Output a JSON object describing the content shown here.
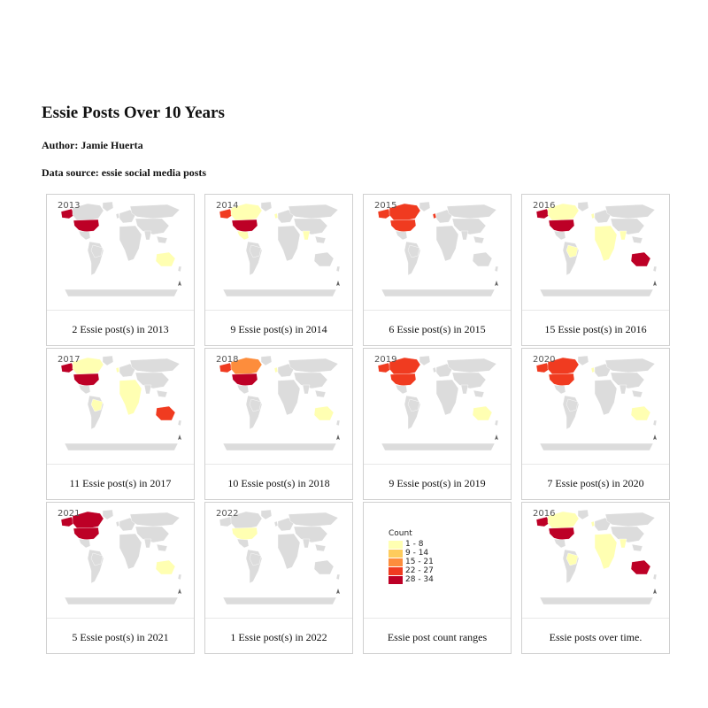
{
  "title": "Essie Posts Over 10 Years",
  "author": "Author: Jamie Huerta",
  "source": "Data source: essie social media posts",
  "colors": {
    "land": "#dcdcdc",
    "c1": "#ffffb2",
    "c2": "#fecc5c",
    "c3": "#fd8d3c",
    "c4": "#f03b20",
    "c5": "#bd0026"
  },
  "panels": [
    {
      "year": "2013",
      "caption": "2 Essie post(s) in 2013",
      "fills": {
        "usa": "c5",
        "canada": "land",
        "alaska": "c5",
        "mexico": "land",
        "brazil": "land",
        "uk": "land",
        "europe": "land",
        "africa": "land",
        "india": "land",
        "australia": "c1"
      }
    },
    {
      "year": "2014",
      "caption": "9 Essie post(s) in 2014",
      "fills": {
        "usa": "c5",
        "canada": "c1",
        "alaska": "c4",
        "mexico": "c1",
        "brazil": "land",
        "uk": "c1",
        "europe": "land",
        "africa": "land",
        "india": "c1",
        "australia": "land"
      }
    },
    {
      "year": "2015",
      "caption": "6 Essie post(s) in 2015",
      "fills": {
        "usa": "c4",
        "canada": "c4",
        "alaska": "c4",
        "mexico": "land",
        "brazil": "land",
        "uk": "c4",
        "europe": "land",
        "africa": "land",
        "india": "land",
        "australia": "land"
      }
    },
    {
      "year": "2016",
      "caption": "15 Essie post(s) in 2016",
      "fills": {
        "usa": "c5",
        "canada": "c1",
        "alaska": "c5",
        "mexico": "land",
        "brazil": "c1",
        "uk": "c1",
        "europe": "land",
        "africa": "c1",
        "india": "c1",
        "australia": "c5"
      }
    },
    {
      "year": "2017",
      "caption": "11 Essie post(s) in 2017",
      "fills": {
        "usa": "c5",
        "canada": "c1",
        "alaska": "c5",
        "mexico": "land",
        "brazil": "c1",
        "uk": "c1",
        "europe": "land",
        "africa": "c1",
        "india": "land",
        "australia": "c4"
      }
    },
    {
      "year": "2018",
      "caption": "10 Essie post(s) in 2018",
      "fills": {
        "usa": "c5",
        "canada": "c3",
        "alaska": "c4",
        "mexico": "land",
        "brazil": "land",
        "uk": "c1",
        "europe": "land",
        "africa": "land",
        "india": "land",
        "australia": "c1"
      }
    },
    {
      "year": "2019",
      "caption": "9 Essie post(s) in 2019",
      "fills": {
        "usa": "c4",
        "canada": "c4",
        "alaska": "c4",
        "mexico": "land",
        "brazil": "land",
        "uk": "land",
        "europe": "land",
        "africa": "land",
        "india": "land",
        "australia": "c1"
      }
    },
    {
      "year": "2020",
      "caption": "7 Essie post(s) in 2020",
      "fills": {
        "usa": "c4",
        "canada": "c4",
        "alaska": "c4",
        "mexico": "land",
        "brazil": "land",
        "uk": "c1",
        "europe": "land",
        "africa": "land",
        "india": "land",
        "australia": "c1"
      }
    },
    {
      "year": "2021",
      "caption": "5 Essie post(s) in 2021",
      "fills": {
        "usa": "c5",
        "canada": "c5",
        "alaska": "c5",
        "mexico": "land",
        "brazil": "land",
        "uk": "land",
        "europe": "land",
        "africa": "land",
        "india": "land",
        "australia": "c1"
      }
    },
    {
      "year": "2022",
      "caption": "1 Essie post(s) in 2022",
      "fills": {
        "usa": "c1",
        "canada": "land",
        "alaska": "land",
        "mexico": "land",
        "brazil": "land",
        "uk": "land",
        "europe": "land",
        "africa": "land",
        "india": "land",
        "australia": "land"
      }
    },
    {
      "legend": true,
      "caption": "Essie post count ranges"
    },
    {
      "year": "2016",
      "caption": "Essie posts over time.",
      "fills": {
        "usa": "c5",
        "canada": "c1",
        "alaska": "c5",
        "mexico": "land",
        "brazil": "c1",
        "uk": "c1",
        "europe": "land",
        "africa": "c1",
        "india": "c1",
        "australia": "c5"
      }
    }
  ],
  "legend": {
    "title": "Count",
    "items": [
      {
        "label": "1 - 8",
        "color": "#ffffb2"
      },
      {
        "label": "9 - 14",
        "color": "#fecc5c"
      },
      {
        "label": "15 - 21",
        "color": "#fd8d3c"
      },
      {
        "label": "22 - 27",
        "color": "#f03b20"
      },
      {
        "label": "28 - 34",
        "color": "#bd0026"
      }
    ]
  },
  "chart_data": {
    "type": "map",
    "title": "Essie Posts Over 10 Years",
    "legend_title": "Count",
    "ranges": [
      "1 - 8",
      "9 - 14",
      "15 - 21",
      "22 - 27",
      "28 - 34"
    ],
    "years": [
      "2013",
      "2014",
      "2015",
      "2016",
      "2017",
      "2018",
      "2019",
      "2020",
      "2021",
      "2022"
    ],
    "post_counts": [
      2,
      9,
      6,
      15,
      11,
      10,
      9,
      7,
      5,
      1
    ]
  }
}
